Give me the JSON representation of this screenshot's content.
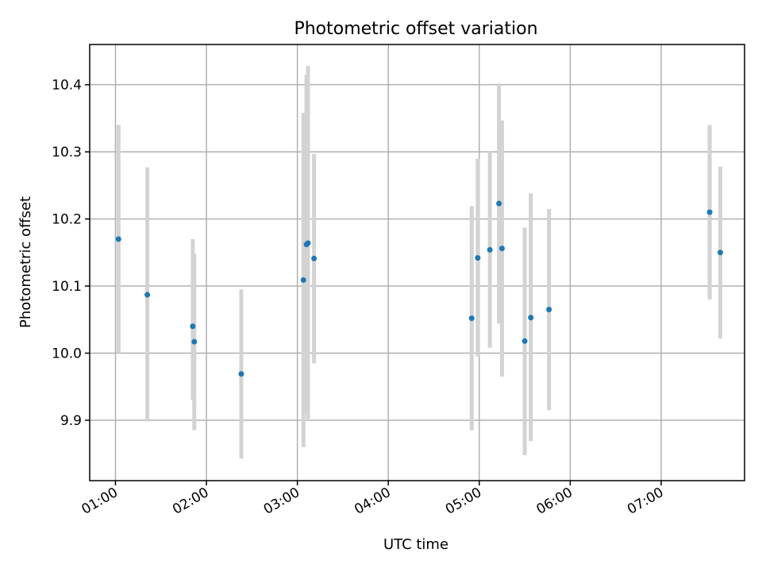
{
  "chart_data": {
    "type": "scatter",
    "title": "Photometric offset variation",
    "xlabel": "UTC time",
    "ylabel": "Photometric offset",
    "xlim": [
      "00:43",
      "07:55"
    ],
    "ylim": [
      9.81,
      10.46
    ],
    "x_ticks": [
      "01:00",
      "02:00",
      "03:00",
      "04:00",
      "05:00",
      "06:00",
      "07:00"
    ],
    "y_ticks": [
      "9.9",
      "10.0",
      "10.1",
      "10.2",
      "10.3",
      "10.4"
    ],
    "grid": true,
    "colors": {
      "marker": "#1f77b4",
      "errorbar": "#d3d3d3"
    },
    "points": [
      {
        "x": "01:02",
        "y": 10.17,
        "yerr_low": 10.0,
        "yerr_high": 10.34
      },
      {
        "x": "01:21",
        "y": 10.087,
        "yerr_low": 9.898,
        "yerr_high": 10.277
      },
      {
        "x": "01:51",
        "y": 10.04,
        "yerr_low": 9.93,
        "yerr_high": 10.17
      },
      {
        "x": "01:52",
        "y": 10.017,
        "yerr_low": 9.885,
        "yerr_high": 10.148
      },
      {
        "x": "02:23",
        "y": 9.969,
        "yerr_low": 9.843,
        "yerr_high": 10.095
      },
      {
        "x": "03:04",
        "y": 10.109,
        "yerr_low": 9.86,
        "yerr_high": 10.358
      },
      {
        "x": "03:06",
        "y": 10.162,
        "yerr_low": 9.908,
        "yerr_high": 10.415
      },
      {
        "x": "03:07",
        "y": 10.164,
        "yerr_low": 9.9,
        "yerr_high": 10.428
      },
      {
        "x": "03:11",
        "y": 10.141,
        "yerr_low": 9.985,
        "yerr_high": 10.297
      },
      {
        "x": "04:55",
        "y": 10.052,
        "yerr_low": 9.885,
        "yerr_high": 10.219
      },
      {
        "x": "04:59",
        "y": 10.142,
        "yerr_low": 9.995,
        "yerr_high": 10.29
      },
      {
        "x": "05:07",
        "y": 10.154,
        "yerr_low": 10.008,
        "yerr_high": 10.3
      },
      {
        "x": "05:13",
        "y": 10.223,
        "yerr_low": 10.044,
        "yerr_high": 10.402
      },
      {
        "x": "05:15",
        "y": 10.156,
        "yerr_low": 9.965,
        "yerr_high": 10.347
      },
      {
        "x": "05:30",
        "y": 10.018,
        "yerr_low": 9.848,
        "yerr_high": 10.187
      },
      {
        "x": "05:34",
        "y": 10.053,
        "yerr_low": 9.869,
        "yerr_high": 10.238
      },
      {
        "x": "05:46",
        "y": 10.065,
        "yerr_low": 9.915,
        "yerr_high": 10.215
      },
      {
        "x": "07:32",
        "y": 10.21,
        "yerr_low": 10.08,
        "yerr_high": 10.34
      },
      {
        "x": "07:39",
        "y": 10.15,
        "yerr_low": 10.022,
        "yerr_high": 10.278
      }
    ]
  }
}
